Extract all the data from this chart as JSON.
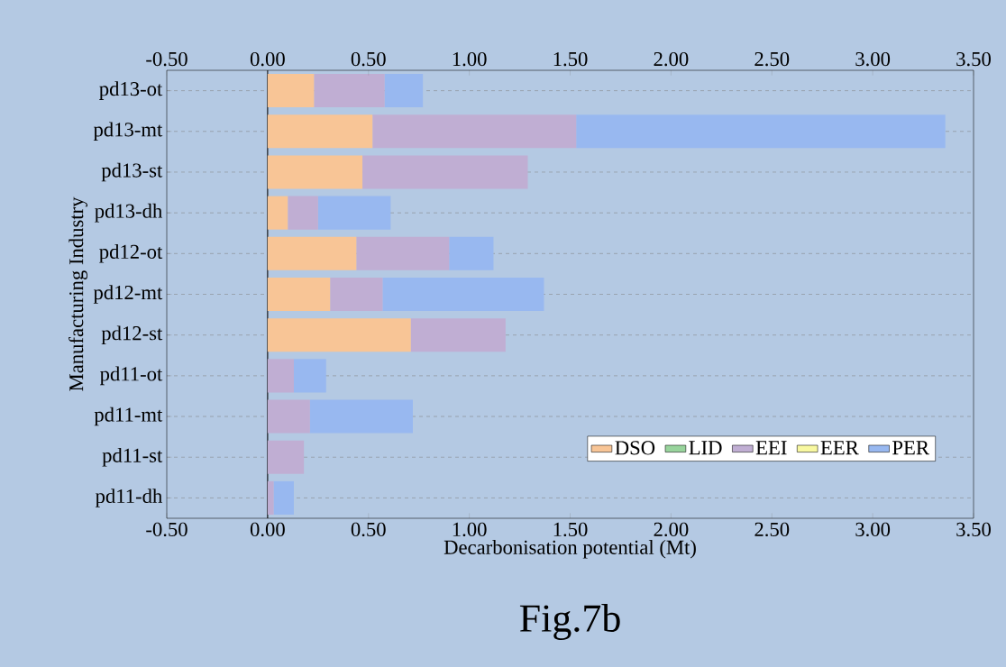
{
  "chart_data": {
    "type": "bar",
    "orientation": "horizontal",
    "stacked": true,
    "xlabel": "Decarbonisation potential (Mt)",
    "ylabel": "Manufacturing Industry",
    "annotations": [
      "Fig.7b"
    ],
    "categories": [
      "pd13-ot",
      "pd13-mt",
      "pd13-st",
      "pd13-dh",
      "pd12-ot",
      "pd12-mt",
      "pd12-st",
      "pd11-ot",
      "pd11-mt",
      "pd11-st",
      "pd11-dh"
    ],
    "series": [
      {
        "name": "DSO",
        "color": "#f8c596",
        "values": [
          0.23,
          0.52,
          0.47,
          0.1,
          0.44,
          0.31,
          0.71,
          0,
          0,
          0,
          0
        ]
      },
      {
        "name": "LID",
        "color": "#98d49c",
        "values": [
          0,
          0,
          0,
          0,
          0,
          0,
          0,
          0,
          0,
          0,
          0
        ]
      },
      {
        "name": "EEI",
        "color": "#c0aed3",
        "values": [
          0.35,
          1.01,
          0.82,
          0.15,
          0.46,
          0.26,
          0.47,
          0.13,
          0.21,
          0.18,
          0.03
        ]
      },
      {
        "name": "EER",
        "color": "#f8f8a0",
        "values": [
          0,
          0,
          0,
          0,
          0,
          0,
          0,
          0,
          0,
          0,
          0
        ]
      },
      {
        "name": "PER",
        "color": "#98b8f0",
        "values": [
          0.19,
          1.83,
          0,
          0.36,
          0.22,
          0.8,
          0,
          0.16,
          0.51,
          0,
          0.1
        ]
      }
    ],
    "xlim": [
      -0.5,
      3.5
    ],
    "xticks": [
      {
        "value": -0.5,
        "label": "-0.50"
      },
      {
        "value": 0,
        "label": "0.00"
      },
      {
        "value": 0.5,
        "label": "0.50"
      },
      {
        "value": 1,
        "label": "1.00"
      },
      {
        "value": 1.5,
        "label": "1.50"
      },
      {
        "value": 2,
        "label": "2.00"
      },
      {
        "value": 2.5,
        "label": "2.50"
      },
      {
        "value": 3,
        "label": "3.00"
      },
      {
        "value": 3.5,
        "label": "3.50"
      }
    ],
    "x2lim": [
      -0.5,
      3.5
    ],
    "x2ticks": [
      {
        "value": -0.5,
        "label": "-0.50"
      },
      {
        "value": 0,
        "label": "0.00"
      },
      {
        "value": 0.5,
        "label": "0.50"
      },
      {
        "value": 1,
        "label": "1.00"
      },
      {
        "value": 1.5,
        "label": "1.50"
      },
      {
        "value": 2,
        "label": "2.00"
      },
      {
        "value": 2.5,
        "label": "2.50"
      },
      {
        "value": 3,
        "label": "3.00"
      },
      {
        "value": 3.5,
        "label": "3.50"
      }
    ],
    "grid": "y",
    "legend": "bottom right"
  }
}
